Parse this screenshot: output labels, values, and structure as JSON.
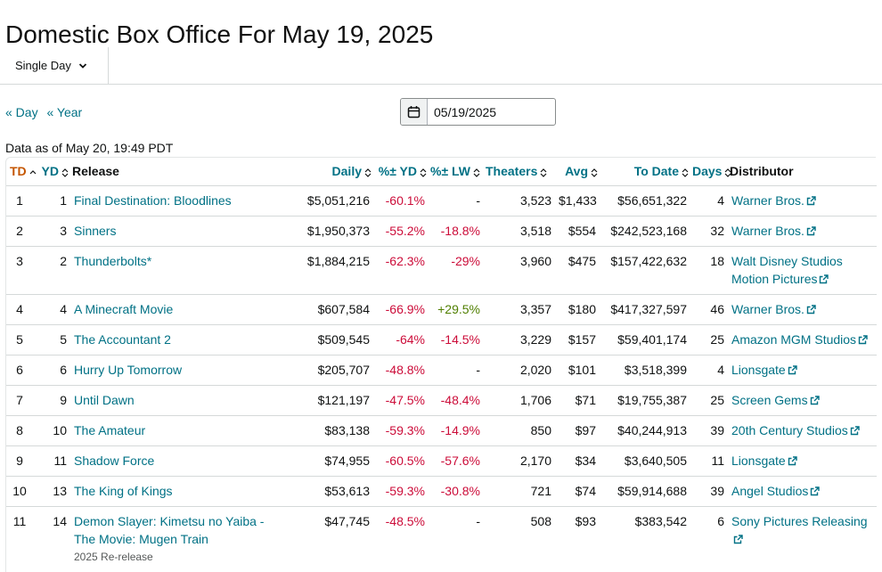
{
  "page": {
    "title": "Domestic Box Office For May 19, 2025"
  },
  "tabs": {
    "selected": "Single Day"
  },
  "nav": {
    "prev_day": "« Day",
    "prev_year": "« Year"
  },
  "date_picker": {
    "value": "05/19/2025"
  },
  "data_asof": "Data as of May 20, 19:49 PDT",
  "table": {
    "headers": {
      "td": "TD",
      "yd": "YD",
      "release": "Release",
      "daily": "Daily",
      "pct_yd": "%± YD",
      "pct_lw": "%± LW",
      "theaters": "Theaters",
      "avg": "Avg",
      "to_date": "To Date",
      "days": "Days",
      "distributor": "Distributor"
    },
    "rows": [
      {
        "td": "1",
        "yd": "1",
        "release": "Final Destination: Bloodlines",
        "note": "",
        "daily": "$5,051,216",
        "pct_yd": "-60.1%",
        "pct_lw": "-",
        "theaters": "3,523",
        "avg": "$1,433",
        "to_date": "$56,651,322",
        "days": "4",
        "distributor": "Warner Bros."
      },
      {
        "td": "2",
        "yd": "3",
        "release": "Sinners",
        "note": "",
        "daily": "$1,950,373",
        "pct_yd": "-55.2%",
        "pct_lw": "-18.8%",
        "theaters": "3,518",
        "avg": "$554",
        "to_date": "$242,523,168",
        "days": "32",
        "distributor": "Warner Bros."
      },
      {
        "td": "3",
        "yd": "2",
        "release": "Thunderbolts*",
        "note": "",
        "daily": "$1,884,215",
        "pct_yd": "-62.3%",
        "pct_lw": "-29%",
        "theaters": "3,960",
        "avg": "$475",
        "to_date": "$157,422,632",
        "days": "18",
        "distributor": "Walt Disney Studios Motion Pictures"
      },
      {
        "td": "4",
        "yd": "4",
        "release": "A Minecraft Movie",
        "note": "",
        "daily": "$607,584",
        "pct_yd": "-66.9%",
        "pct_lw": "+29.5%",
        "theaters": "3,357",
        "avg": "$180",
        "to_date": "$417,327,597",
        "days": "46",
        "distributor": "Warner Bros."
      },
      {
        "td": "5",
        "yd": "5",
        "release": "The Accountant 2",
        "note": "",
        "daily": "$509,545",
        "pct_yd": "-64%",
        "pct_lw": "-14.5%",
        "theaters": "3,229",
        "avg": "$157",
        "to_date": "$59,401,174",
        "days": "25",
        "distributor": "Amazon MGM Studios"
      },
      {
        "td": "6",
        "yd": "6",
        "release": "Hurry Up Tomorrow",
        "note": "",
        "daily": "$205,707",
        "pct_yd": "-48.8%",
        "pct_lw": "-",
        "theaters": "2,020",
        "avg": "$101",
        "to_date": "$3,518,399",
        "days": "4",
        "distributor": "Lionsgate"
      },
      {
        "td": "7",
        "yd": "9",
        "release": "Until Dawn",
        "note": "",
        "daily": "$121,197",
        "pct_yd": "-47.5%",
        "pct_lw": "-48.4%",
        "theaters": "1,706",
        "avg": "$71",
        "to_date": "$19,755,387",
        "days": "25",
        "distributor": "Screen Gems"
      },
      {
        "td": "8",
        "yd": "10",
        "release": "The Amateur",
        "note": "",
        "daily": "$83,138",
        "pct_yd": "-59.3%",
        "pct_lw": "-14.9%",
        "theaters": "850",
        "avg": "$97",
        "to_date": "$40,244,913",
        "days": "39",
        "distributor": "20th Century Studios"
      },
      {
        "td": "9",
        "yd": "11",
        "release": "Shadow Force",
        "note": "",
        "daily": "$74,955",
        "pct_yd": "-60.5%",
        "pct_lw": "-57.6%",
        "theaters": "2,170",
        "avg": "$34",
        "to_date": "$3,640,505",
        "days": "11",
        "distributor": "Lionsgate"
      },
      {
        "td": "10",
        "yd": "13",
        "release": "The King of Kings",
        "note": "",
        "daily": "$53,613",
        "pct_yd": "-59.3%",
        "pct_lw": "-30.8%",
        "theaters": "721",
        "avg": "$74",
        "to_date": "$59,914,688",
        "days": "39",
        "distributor": "Angel Studios"
      },
      {
        "td": "11",
        "yd": "14",
        "release": "Demon Slayer: Kimetsu no Yaiba - The Movie: Mugen Train",
        "note": "2025 Re-release",
        "daily": "$47,745",
        "pct_yd": "-48.5%",
        "pct_lw": "-",
        "theaters": "508",
        "avg": "$93",
        "to_date": "$383,542",
        "days": "6",
        "distributor": "Sony Pictures Releasing"
      }
    ]
  },
  "colors": {
    "link": "#007185",
    "negative": "#cc0c39",
    "positive": "#507f00",
    "sorted_header": "#c45500"
  },
  "icons": {
    "calendar": "calendar-icon",
    "chevron": "chevron-down-icon",
    "sort": "sort-arrows-icon",
    "external": "external-link-icon"
  }
}
